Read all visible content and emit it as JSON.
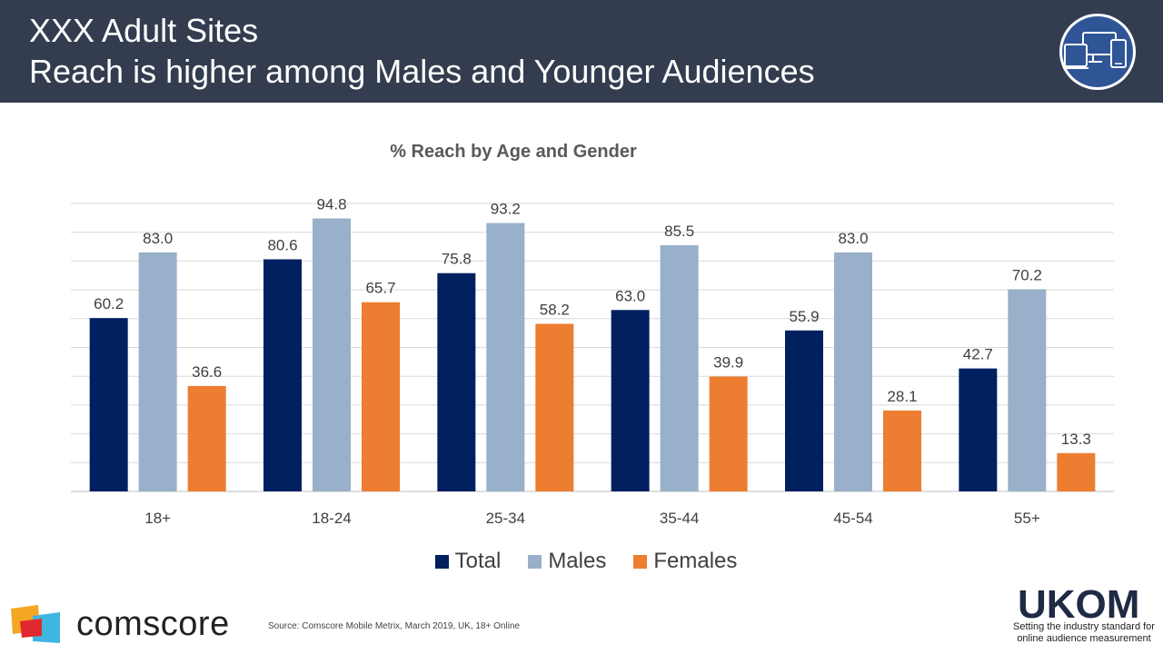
{
  "header": {
    "title_line1": "XXX Adult Sites",
    "title_line2": "Reach is higher among Males and Younger Audiences",
    "bg_color": "#333d4f",
    "badge_icon": "devices-icon"
  },
  "chart_data": {
    "type": "bar",
    "title": "% Reach by Age and Gender",
    "categories": [
      "18+",
      "18-24",
      "25-34",
      "35-44",
      "45-54",
      "55+"
    ],
    "series": [
      {
        "name": "Total",
        "color": "#002060",
        "values": [
          60.2,
          80.6,
          75.8,
          63.0,
          55.9,
          42.7
        ],
        "labels": [
          "60.2",
          "80.6",
          "75.8",
          "63.0",
          "55.9",
          "42.7"
        ]
      },
      {
        "name": "Males",
        "color": "#98b0c9",
        "values": [
          83.0,
          94.8,
          93.2,
          85.5,
          83.0,
          70.2
        ],
        "labels": [
          "83.0",
          "94.8",
          "93.2",
          "85.5",
          "83.0",
          "70.2"
        ]
      },
      {
        "name": "Females",
        "color": "#ed7d31",
        "values": [
          36.6,
          65.7,
          58.2,
          39.9,
          28.1,
          13.3
        ],
        "labels": [
          "36.6",
          "65.7",
          "58.2",
          "39.9",
          "28.1",
          "13.3"
        ]
      }
    ],
    "ylim": [
      0,
      100
    ],
    "ytick_step": 10,
    "y_tick_labels_shown": false,
    "grid": true,
    "legend_position": "bottom"
  },
  "footer": {
    "comscore_brand": "comscore",
    "source": "Source: Comscore Mobile Metrix, March 2019, UK, 18+ Online",
    "ukom_brand": "UKOM",
    "ukom_tagline": "Setting the industry standard for online audience measurement"
  }
}
